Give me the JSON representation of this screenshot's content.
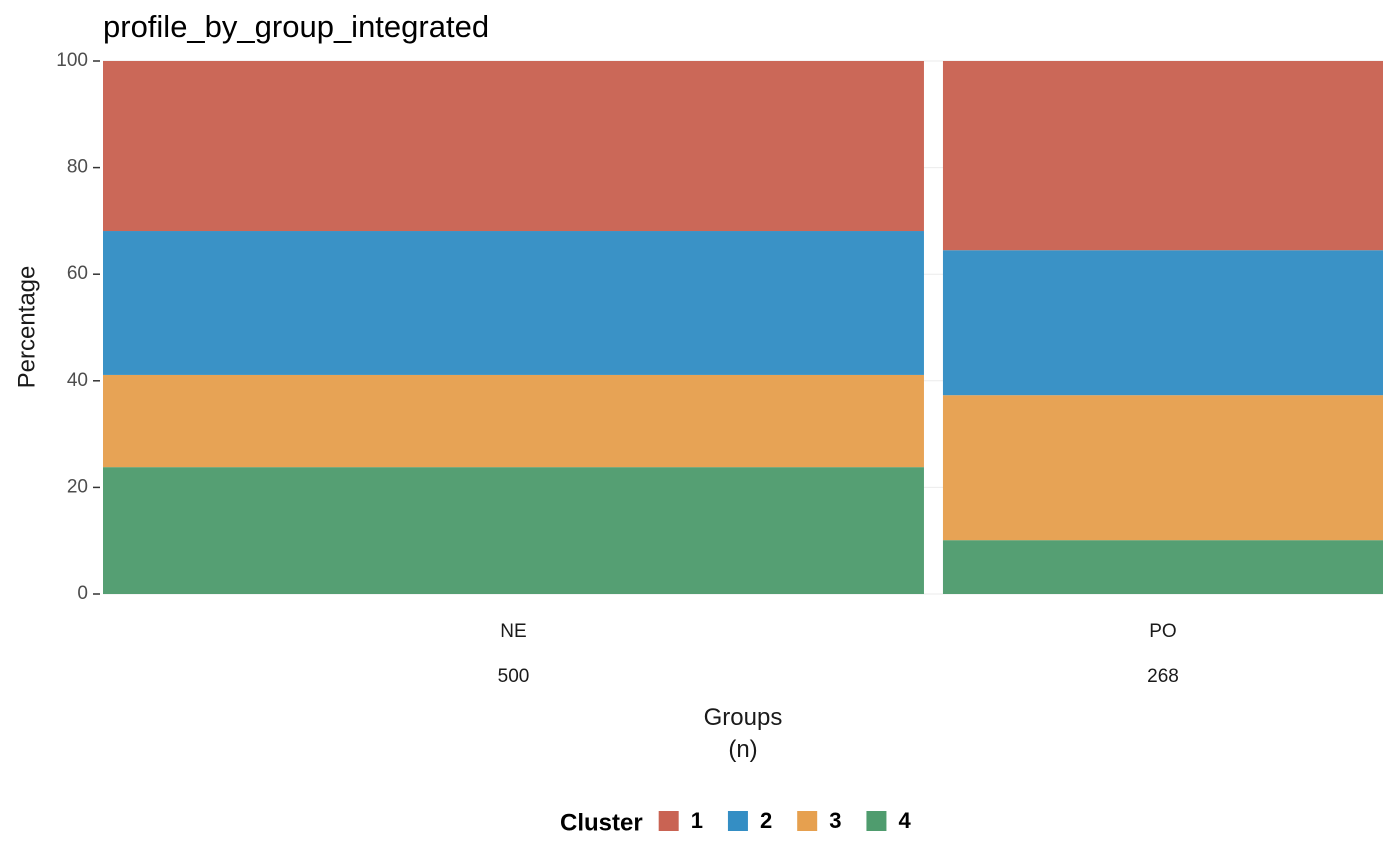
{
  "chart_data": {
    "type": "mosaic",
    "title": "profile_by_group_integrated",
    "xlabel": "Groups\n(n)",
    "ylabel": "Percentage",
    "categories": [
      "NE",
      "PO"
    ],
    "n": [
      500,
      268
    ],
    "legend_title": "Cluster",
    "series": [
      {
        "name": "1",
        "color": "#c96353",
        "values": [
          31.9,
          35.5
        ]
      },
      {
        "name": "2",
        "color": "#348ec4",
        "values": [
          27.0,
          27.2
        ]
      },
      {
        "name": "3",
        "color": "#e6a04f",
        "values": [
          17.3,
          27.2
        ]
      },
      {
        "name": "4",
        "color": "#4f9c6e",
        "values": [
          23.8,
          10.1
        ]
      }
    ],
    "ylim": [
      0,
      100
    ],
    "yticks": [
      0,
      20,
      40,
      60,
      80,
      100
    ],
    "grid": true
  }
}
